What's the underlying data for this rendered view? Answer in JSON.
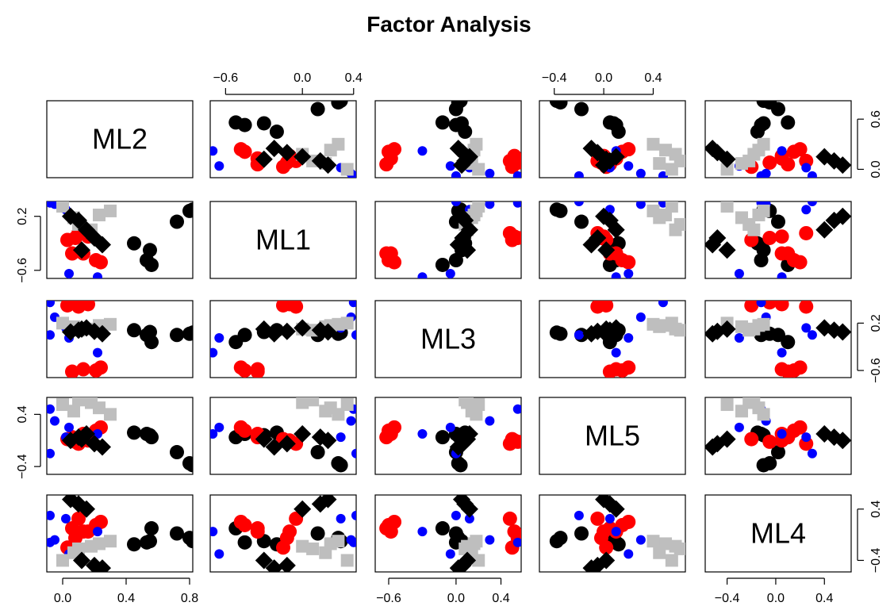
{
  "chart_data": {
    "type": "scatter",
    "subtype": "scatterplot-matrix",
    "title": "Factor Analysis",
    "variables": [
      "ML2",
      "ML1",
      "ML3",
      "ML5",
      "ML4"
    ],
    "ranges": {
      "ML2": [
        -0.1,
        0.82
      ],
      "ML1": [
        -0.72,
        0.42
      ],
      "ML3": [
        -0.72,
        0.58
      ],
      "ML5": [
        -0.52,
        0.66
      ],
      "ML4": [
        -0.58,
        0.62
      ]
    },
    "axes": {
      "ML2": {
        "ticks": [
          0.0,
          0.4,
          0.8
        ],
        "labels": [
          "0.0",
          "0.4",
          "0.8"
        ],
        "side": "bottom"
      },
      "ML1": {
        "ticks": [
          -0.6,
          0.0,
          0.4
        ],
        "labels": [
          "−0.6",
          "0.0",
          "0.4"
        ],
        "side": "top"
      },
      "ML3": {
        "ticks": [
          -0.6,
          0.0,
          0.4
        ],
        "labels": [
          "−0.6",
          "0.0",
          "0.4"
        ],
        "side": "bottom"
      },
      "ML5": {
        "ticks": [
          -0.4,
          0.0,
          0.4
        ],
        "labels": [
          "−0.4",
          "0.0",
          "0.4"
        ],
        "side": "top"
      },
      "ML4": {
        "ticks": [
          -0.4,
          0.0,
          0.4
        ],
        "labels": [
          "−0.4",
          "0.0",
          "0.4"
        ],
        "side": "bottom"
      },
      "row_ML2": {
        "ticks": [
          0.0,
          0.6
        ],
        "labels": [
          "0.0",
          "0.6"
        ],
        "side": "right"
      },
      "row_ML1": {
        "ticks": [
          -0.6,
          0.2
        ],
        "labels": [
          "−0.6",
          "0.2"
        ],
        "side": "left"
      },
      "row_ML3": {
        "ticks": [
          -0.6,
          0.2
        ],
        "labels": [
          "−0.6",
          "0.2"
        ],
        "side": "right"
      },
      "row_ML5": {
        "ticks": [
          -0.4,
          0.4
        ],
        "labels": [
          "−0.4",
          "0.4"
        ],
        "side": "left"
      },
      "row_ML4": {
        "ticks": [
          -0.4,
          0.4
        ],
        "labels": [
          "−0.4",
          "0.4"
        ],
        "side": "right"
      }
    },
    "groups": [
      {
        "color": "#000000",
        "shape": "circle"
      },
      {
        "color": "#ff0000",
        "shape": "circle"
      },
      {
        "color": "#0000ff",
        "shape": "small-circle"
      },
      {
        "color": "#bebebe",
        "shape": "square"
      },
      {
        "color": "#000000",
        "shape": "diamond"
      }
    ],
    "points": [
      {
        "group": 0,
        "ML2": 0.8,
        "ML1": 0.28,
        "ML3": 0.02,
        "ML5": -0.35,
        "ML4": -0.05
      },
      {
        "group": 0,
        "ML2": 0.82,
        "ML1": 0.3,
        "ML3": 0.04,
        "ML5": -0.38,
        "ML4": -0.1
      },
      {
        "group": 0,
        "ML2": 0.72,
        "ML1": 0.12,
        "ML3": 0.0,
        "ML5": -0.18,
        "ML4": 0.02
      },
      {
        "group": 0,
        "ML2": 0.56,
        "ML1": -0.52,
        "ML3": -0.12,
        "ML5": 0.05,
        "ML4": 0.1
      },
      {
        "group": 0,
        "ML2": 0.53,
        "ML1": -0.45,
        "ML3": 0.0,
        "ML5": 0.1,
        "ML4": -0.12
      },
      {
        "group": 0,
        "ML2": 0.55,
        "ML1": -0.3,
        "ML3": 0.05,
        "ML5": 0.08,
        "ML4": -0.1
      },
      {
        "group": 0,
        "ML2": 0.45,
        "ML1": -0.2,
        "ML3": 0.08,
        "ML5": 0.12,
        "ML4": -0.15
      },
      {
        "group": 1,
        "ML2": 0.06,
        "ML1": -0.35,
        "ML3": -0.62,
        "ML5": 0.05,
        "ML4": 0.1
      },
      {
        "group": 1,
        "ML2": 0.13,
        "ML1": -0.35,
        "ML3": -0.58,
        "ML5": 0.1,
        "ML4": 0.05
      },
      {
        "group": 1,
        "ML2": 0.21,
        "ML1": -0.45,
        "ML3": -0.6,
        "ML5": 0.15,
        "ML4": 0.15
      },
      {
        "group": 1,
        "ML2": 0.24,
        "ML1": -0.48,
        "ML3": -0.55,
        "ML5": 0.2,
        "ML4": 0.2
      },
      {
        "group": 1,
        "ML2": 0.1,
        "ML1": -0.05,
        "ML3": 0.48,
        "ML5": -0.05,
        "ML4": 0.25
      },
      {
        "group": 1,
        "ML2": 0.16,
        "ML1": -0.1,
        "ML3": 0.52,
        "ML5": 0.0,
        "ML4": 0.05
      },
      {
        "group": 1,
        "ML2": 0.03,
        "ML1": -0.15,
        "ML3": 0.5,
        "ML5": 0.02,
        "ML4": -0.2
      },
      {
        "group": 1,
        "ML2": 0.08,
        "ML1": -0.12,
        "ML3": 0.55,
        "ML5": -0.02,
        "ML4": -0.05
      },
      {
        "group": 2,
        "ML2": -0.08,
        "ML1": 0.4,
        "ML3": 0.55,
        "ML5": 0.48,
        "ML4": -0.12
      },
      {
        "group": 2,
        "ML2": -0.05,
        "ML1": 0.38,
        "ML3": 0.3,
        "ML5": 0.3,
        "ML4": -0.08
      },
      {
        "group": 2,
        "ML2": 0.22,
        "ML1": -0.7,
        "ML3": -0.3,
        "ML5": 0.1,
        "ML4": 0.05
      },
      {
        "group": 2,
        "ML2": 0.04,
        "ML1": -0.65,
        "ML3": -0.05,
        "ML5": 0.2,
        "ML4": -0.3
      },
      {
        "group": 2,
        "ML2": -0.08,
        "ML1": 0.42,
        "ML3": 0.0,
        "ML5": -0.2,
        "ML4": 0.3
      },
      {
        "group": 2,
        "ML2": 0.02,
        "ML1": 0.3,
        "ML3": 0.12,
        "ML5": 0.05,
        "ML4": 0.25
      },
      {
        "group": 3,
        "ML2": 0.0,
        "ML1": 0.35,
        "ML3": 0.2,
        "ML5": 0.55,
        "ML4": -0.4
      },
      {
        "group": 3,
        "ML2": 0.07,
        "ML1": 0.18,
        "ML3": 0.14,
        "ML5": 0.45,
        "ML4": -0.28
      },
      {
        "group": 3,
        "ML2": 0.1,
        "ML1": 0.08,
        "ML3": 0.08,
        "ML5": 0.62,
        "ML4": -0.22
      },
      {
        "group": 3,
        "ML2": 0.18,
        "ML1": 0.0,
        "ML3": 0.1,
        "ML5": 0.58,
        "ML4": -0.18
      },
      {
        "group": 3,
        "ML2": 0.23,
        "ML1": 0.22,
        "ML3": 0.16,
        "ML5": 0.5,
        "ML4": -0.14
      },
      {
        "group": 3,
        "ML2": 0.3,
        "ML1": 0.28,
        "ML3": 0.18,
        "ML5": 0.4,
        "ML4": -0.1
      },
      {
        "group": 4,
        "ML2": 0.05,
        "ML1": 0.2,
        "ML3": 0.05,
        "ML5": 0.0,
        "ML4": 0.55
      },
      {
        "group": 4,
        "ML2": 0.1,
        "ML1": 0.14,
        "ML3": 0.08,
        "ML5": 0.05,
        "ML4": 0.48
      },
      {
        "group": 4,
        "ML2": 0.15,
        "ML1": 0.0,
        "ML3": 0.12,
        "ML5": 0.1,
        "ML4": 0.4
      },
      {
        "group": 4,
        "ML2": 0.2,
        "ML1": -0.12,
        "ML3": 0.06,
        "ML5": -0.05,
        "ML4": -0.48
      },
      {
        "group": 4,
        "ML2": 0.25,
        "ML1": -0.22,
        "ML3": 0.02,
        "ML5": -0.1,
        "ML4": -0.52
      },
      {
        "group": 4,
        "ML2": 0.12,
        "ML1": -0.3,
        "ML3": 0.1,
        "ML5": 0.02,
        "ML4": -0.4
      }
    ]
  }
}
